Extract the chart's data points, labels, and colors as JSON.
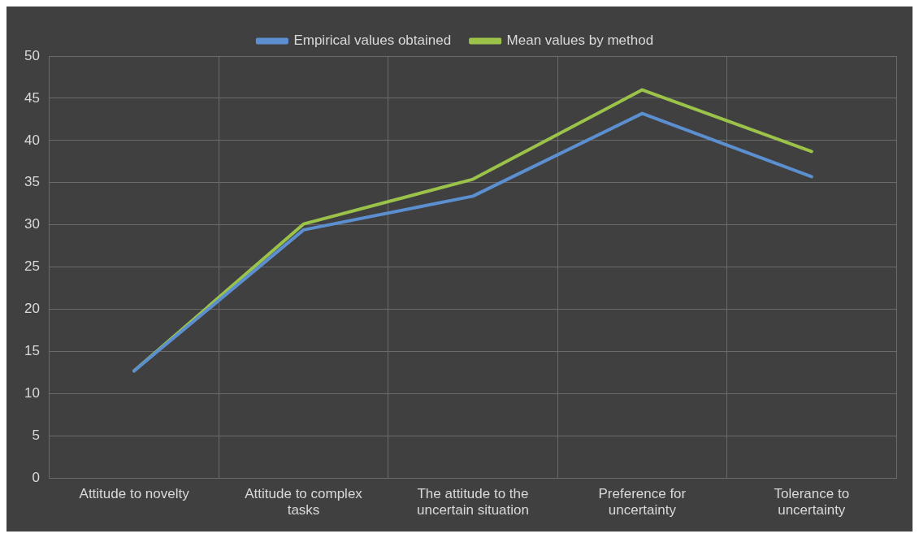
{
  "chart_data": {
    "type": "line",
    "categories": [
      "Attitude to novelty",
      "Attitude to complex tasks",
      "The attitude to the uncertain situation",
      "Preference for uncertainty",
      "Tolerance to uncertainty"
    ],
    "series": [
      {
        "name": "Empirical values obtained",
        "color": "#5b8fd0",
        "values": [
          12.7,
          29.4,
          33.4,
          43.2,
          35.7
        ]
      },
      {
        "name": "Mean values by method",
        "color": "#9bc34a",
        "values": [
          12.7,
          30.1,
          35.4,
          46.0,
          38.7
        ]
      }
    ],
    "ylim": [
      0,
      50
    ],
    "yticks": [
      0,
      5,
      10,
      15,
      20,
      25,
      30,
      35,
      40,
      45,
      50
    ],
    "grid": true,
    "legend": "top",
    "marker": "none",
    "line_style": "solid"
  }
}
